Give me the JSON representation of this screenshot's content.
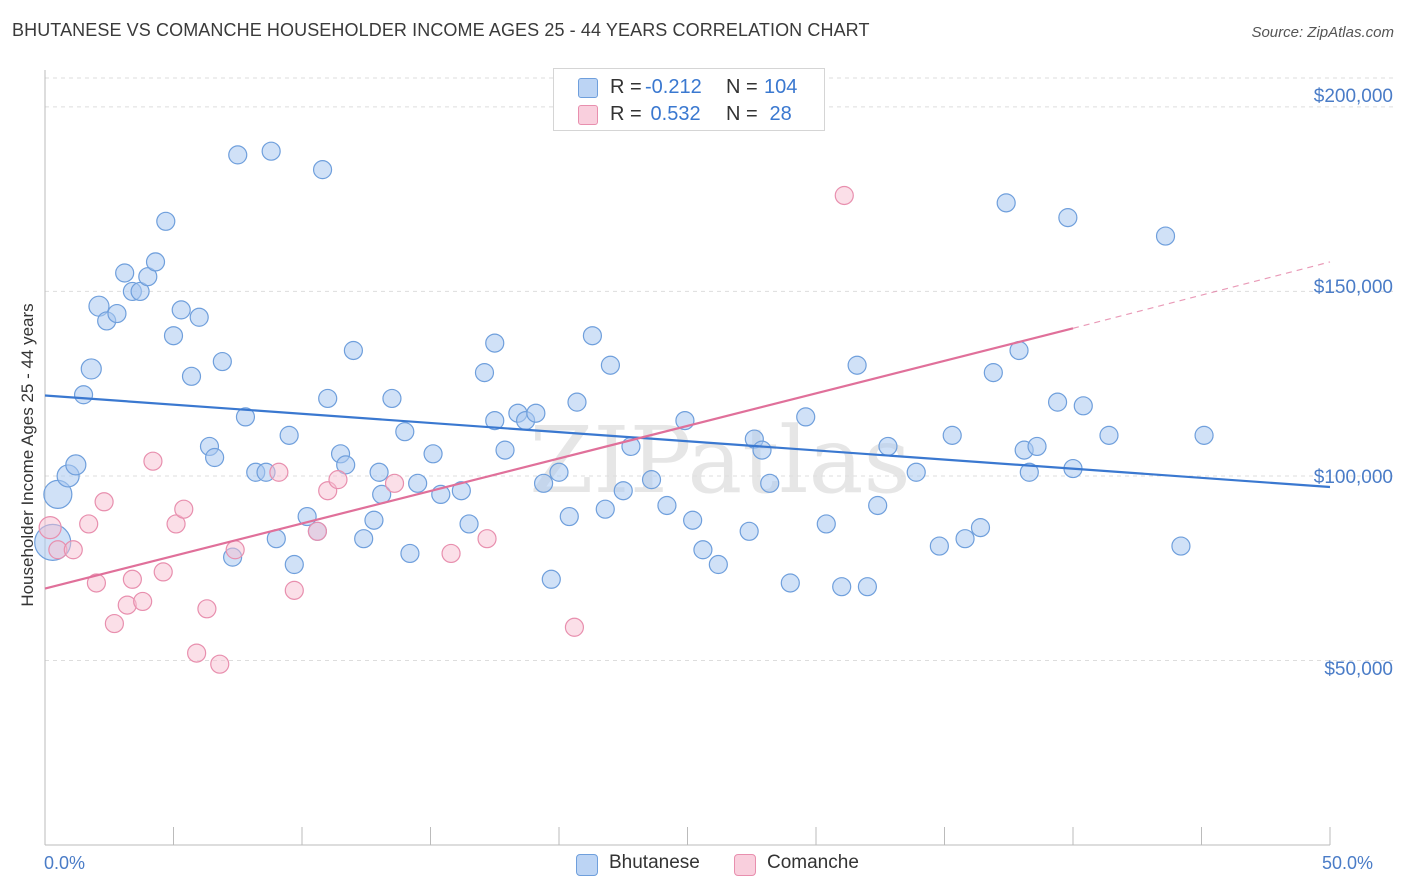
{
  "title": "BHUTANESE VS COMANCHE HOUSEHOLDER INCOME AGES 25 - 44 YEARS CORRELATION CHART",
  "source": "Source: ZipAtlas.com",
  "watermark": "ZIPatlas",
  "colors": {
    "bhutanese_fill": "#aac8f0",
    "bhutanese_stroke": "#6f9fdc",
    "bhutanese_line": "#3a78d0",
    "comanche_fill": "#f7bfd2",
    "comanche_stroke": "#e88fae",
    "comanche_line": "#e0709a",
    "axis_text": "#4a7cc7",
    "grid": "#dddddd"
  },
  "legend": {
    "rows": [
      {
        "r_label": "R =",
        "r_value": "-0.212",
        "n_label": "N =",
        "n_value": "104"
      },
      {
        "r_label": "R =",
        "r_value": " 0.532",
        "n_label": "N =",
        "n_value": " 28"
      }
    ]
  },
  "bottom_legend": [
    "Bhutanese",
    "Comanche"
  ],
  "chart_data": {
    "type": "scatter",
    "title": "BHUTANESE VS COMANCHE HOUSEHOLDER INCOME AGES 25 - 44 YEARS CORRELATION CHART",
    "xlabel": "",
    "ylabel": "Householder Income Ages 25 - 44 years",
    "xlim": [
      0,
      50
    ],
    "ylim": [
      0,
      210000
    ],
    "x_tick_labels": [
      "0.0%",
      "50.0%"
    ],
    "y_ticks": [
      50000,
      100000,
      150000,
      200000
    ],
    "y_tick_labels": [
      "$50,000",
      "$100,000",
      "$150,000",
      "$200,000"
    ],
    "grid": true,
    "legend_position": "top-center",
    "series": [
      {
        "name": "Bhutanese",
        "R": -0.212,
        "N": 104,
        "trend": {
          "x": [
            0,
            50
          ],
          "y": [
            121800,
            97000
          ]
        },
        "points": [
          [
            0.3,
            82000,
            18
          ],
          [
            0.5,
            95000,
            14
          ],
          [
            0.9,
            100000,
            11
          ],
          [
            1.2,
            103000,
            10
          ],
          [
            1.5,
            122000,
            9
          ],
          [
            1.8,
            129000,
            10
          ],
          [
            2.1,
            146000,
            10
          ],
          [
            2.4,
            142000,
            9
          ],
          [
            2.8,
            144000,
            9
          ],
          [
            3.1,
            155000,
            9
          ],
          [
            3.4,
            150000,
            9
          ],
          [
            3.7,
            150000,
            9
          ],
          [
            4.0,
            154000,
            9
          ],
          [
            4.3,
            158000,
            9
          ],
          [
            4.7,
            169000,
            9
          ],
          [
            5.0,
            138000,
            9
          ],
          [
            5.3,
            145000,
            9
          ],
          [
            5.7,
            127000,
            9
          ],
          [
            6.0,
            143000,
            9
          ],
          [
            6.4,
            108000,
            9
          ],
          [
            6.6,
            105000,
            9
          ],
          [
            6.9,
            131000,
            9
          ],
          [
            7.3,
            78000,
            9
          ],
          [
            7.8,
            116000,
            9
          ],
          [
            8.2,
            101000,
            9
          ],
          [
            8.6,
            101000,
            9
          ],
          [
            9.0,
            83000,
            9
          ],
          [
            9.5,
            111000,
            9
          ],
          [
            9.7,
            76000,
            9
          ],
          [
            10.2,
            89000,
            9
          ],
          [
            10.6,
            85000,
            9
          ],
          [
            10.8,
            183000,
            9
          ],
          [
            11.0,
            121000,
            9
          ],
          [
            11.5,
            106000,
            9
          ],
          [
            11.7,
            103000,
            9
          ],
          [
            12.0,
            134000,
            9
          ],
          [
            12.4,
            83000,
            9
          ],
          [
            12.8,
            88000,
            9
          ],
          [
            13.1,
            95000,
            9
          ],
          [
            13.5,
            121000,
            9
          ],
          [
            14.0,
            112000,
            9
          ],
          [
            14.2,
            79000,
            9
          ],
          [
            14.5,
            98000,
            9
          ],
          [
            15.1,
            106000,
            9
          ],
          [
            15.4,
            95000,
            9
          ],
          [
            16.2,
            96000,
            9
          ],
          [
            16.5,
            87000,
            9
          ],
          [
            17.1,
            128000,
            9
          ],
          [
            17.5,
            136000,
            9
          ],
          [
            17.5,
            115000,
            9
          ],
          [
            17.9,
            107000,
            9
          ],
          [
            18.4,
            117000,
            9
          ],
          [
            18.7,
            115000,
            9
          ],
          [
            19.1,
            117000,
            9
          ],
          [
            19.4,
            98000,
            9
          ],
          [
            19.7,
            72000,
            9
          ],
          [
            20.0,
            101000,
            9
          ],
          [
            20.4,
            89000,
            9
          ],
          [
            20.7,
            120000,
            9
          ],
          [
            21.3,
            138000,
            9
          ],
          [
            21.8,
            91000,
            9
          ],
          [
            22.0,
            130000,
            9
          ],
          [
            22.5,
            96000,
            9
          ],
          [
            22.8,
            108000,
            9
          ],
          [
            23.6,
            99000,
            9
          ],
          [
            24.2,
            92000,
            9
          ],
          [
            24.9,
            115000,
            9
          ],
          [
            25.2,
            88000,
            9
          ],
          [
            25.6,
            80000,
            9
          ],
          [
            26.2,
            76000,
            9
          ],
          [
            27.4,
            85000,
            9
          ],
          [
            27.6,
            110000,
            9
          ],
          [
            27.9,
            107000,
            9
          ],
          [
            28.2,
            98000,
            9
          ],
          [
            29.0,
            71000,
            9
          ],
          [
            29.6,
            116000,
            9
          ],
          [
            30.4,
            87000,
            9
          ],
          [
            31.0,
            70000,
            9
          ],
          [
            31.6,
            130000,
            9
          ],
          [
            32.0,
            70000,
            9
          ],
          [
            32.4,
            92000,
            9
          ],
          [
            32.8,
            108000,
            9
          ],
          [
            33.9,
            101000,
            9
          ],
          [
            34.8,
            81000,
            9
          ],
          [
            35.3,
            111000,
            9
          ],
          [
            35.8,
            83000,
            9
          ],
          [
            36.4,
            86000,
            9
          ],
          [
            36.9,
            128000,
            9
          ],
          [
            37.4,
            174000,
            9
          ],
          [
            37.9,
            134000,
            9
          ],
          [
            38.1,
            107000,
            9
          ],
          [
            38.3,
            101000,
            9
          ],
          [
            38.6,
            108000,
            9
          ],
          [
            39.4,
            120000,
            9
          ],
          [
            39.8,
            170000,
            9
          ],
          [
            40.0,
            102000,
            9
          ],
          [
            40.4,
            119000,
            9
          ],
          [
            41.4,
            111000,
            9
          ],
          [
            43.6,
            165000,
            9
          ],
          [
            44.2,
            81000,
            9
          ],
          [
            45.1,
            111000,
            9
          ],
          [
            8.8,
            188000,
            9
          ],
          [
            7.5,
            187000,
            9
          ],
          [
            13.0,
            101000,
            9
          ]
        ]
      },
      {
        "name": "Comanche",
        "R": 0.532,
        "N": 28,
        "trend": {
          "x": [
            0,
            40
          ],
          "y": [
            69500,
            140000
          ]
        },
        "trend_dashed": {
          "x": [
            40,
            50
          ],
          "y": [
            140000,
            158000
          ]
        },
        "points": [
          [
            0.2,
            86000,
            11
          ],
          [
            0.5,
            80000,
            9
          ],
          [
            1.1,
            80000,
            9
          ],
          [
            1.7,
            87000,
            9
          ],
          [
            2.0,
            71000,
            9
          ],
          [
            2.3,
            93000,
            9
          ],
          [
            2.7,
            60000,
            9
          ],
          [
            3.2,
            65000,
            9
          ],
          [
            3.4,
            72000,
            9
          ],
          [
            3.8,
            66000,
            9
          ],
          [
            4.2,
            104000,
            9
          ],
          [
            4.6,
            74000,
            9
          ],
          [
            5.1,
            87000,
            9
          ],
          [
            5.4,
            91000,
            9
          ],
          [
            5.9,
            52000,
            9
          ],
          [
            6.3,
            64000,
            9
          ],
          [
            6.8,
            49000,
            9
          ],
          [
            7.4,
            80000,
            9
          ],
          [
            9.1,
            101000,
            9
          ],
          [
            9.7,
            69000,
            9
          ],
          [
            10.6,
            85000,
            9
          ],
          [
            11.0,
            96000,
            9
          ],
          [
            11.4,
            99000,
            9
          ],
          [
            13.6,
            98000,
            9
          ],
          [
            15.8,
            79000,
            9
          ],
          [
            17.2,
            83000,
            9
          ],
          [
            20.6,
            59000,
            9
          ],
          [
            31.1,
            176000,
            9
          ]
        ]
      }
    ]
  }
}
